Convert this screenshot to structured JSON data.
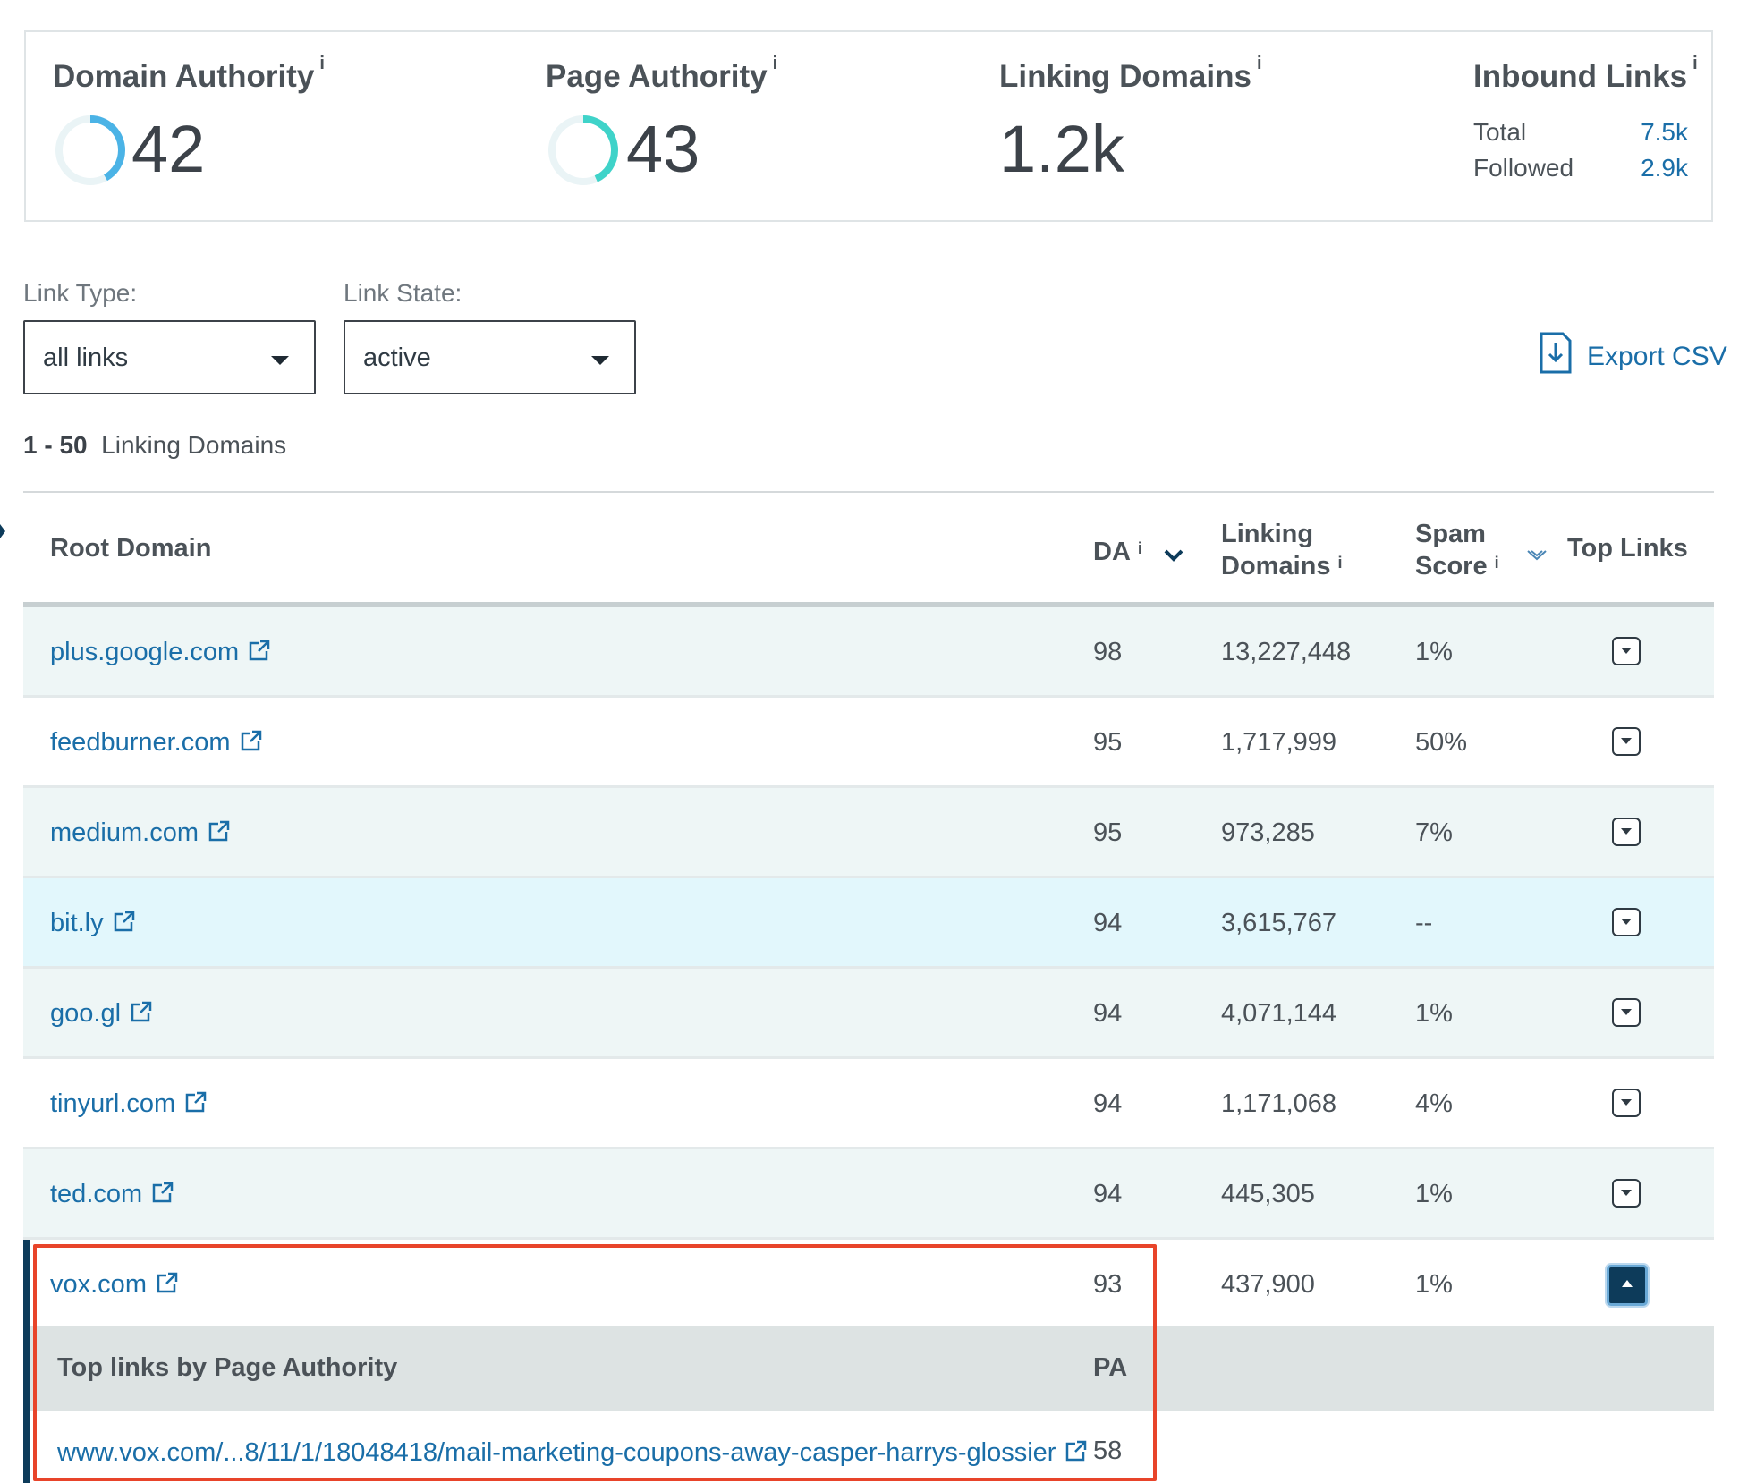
{
  "metrics": {
    "domain_authority": {
      "label": "Domain Authority",
      "info": "i",
      "value": "42",
      "ring_color": "#4bb3e6",
      "fraction": 0.42
    },
    "page_authority": {
      "label": "Page Authority",
      "info": "i",
      "value": "43",
      "ring_color": "#3fd3c9",
      "fraction": 0.43
    },
    "linking_domains": {
      "label": "Linking Domains",
      "info": "i",
      "value": "1.2k"
    },
    "inbound_links": {
      "label": "Inbound Links",
      "info": "i",
      "total_label": "Total",
      "total_value": "7.5k",
      "followed_label": "Followed",
      "followed_value": "2.9k"
    }
  },
  "filters": {
    "link_type": {
      "label": "Link Type:",
      "value": "all links"
    },
    "link_state": {
      "label": "Link State:",
      "value": "active"
    },
    "export_label": "Export CSV"
  },
  "range": {
    "count": "1 - 50",
    "label": "Linking Domains"
  },
  "table": {
    "headers": {
      "root_domain": "Root Domain",
      "da": "DA",
      "linking_line1": "Linking",
      "linking_line2": "Domains",
      "spam_line1": "Spam",
      "spam_line2": "Score",
      "top_links": "Top Links",
      "info": "i"
    },
    "rows": [
      {
        "domain": "plus.google.com",
        "da": "98",
        "linking": "13,227,448",
        "spam": "1%"
      },
      {
        "domain": "feedburner.com",
        "da": "95",
        "linking": "1,717,999",
        "spam": "50%"
      },
      {
        "domain": "medium.com",
        "da": "95",
        "linking": "973,285",
        "spam": "7%"
      },
      {
        "domain": "bit.ly",
        "da": "94",
        "linking": "3,615,767",
        "spam": "--"
      },
      {
        "domain": "goo.gl",
        "da": "94",
        "linking": "4,071,144",
        "spam": "1%"
      },
      {
        "domain": "tinyurl.com",
        "da": "94",
        "linking": "1,171,068",
        "spam": "4%"
      },
      {
        "domain": "ted.com",
        "da": "94",
        "linking": "445,305",
        "spam": "1%"
      },
      {
        "domain": "vox.com",
        "da": "93",
        "linking": "437,900",
        "spam": "1%"
      }
    ],
    "expanded": {
      "title": "Top links by Page Authority",
      "pa_header": "PA",
      "link": "www.vox.com/...8/11/1/18048418/mail-marketing-coupons-away-casper-harrys-glossier",
      "pa_value": "58"
    }
  },
  "colors": {
    "link": "#1a6ea8",
    "highlight": "#e8442a",
    "accent_dark": "#0d3b5a"
  }
}
